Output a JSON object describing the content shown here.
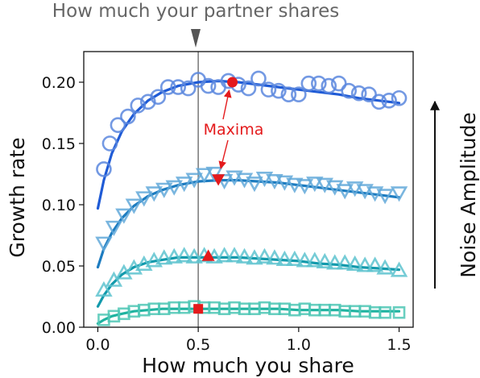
{
  "chart_data": {
    "type": "scatter",
    "title": "",
    "xlabel": "How much you share",
    "ylabel": "Growth rate",
    "xlim": [
      -0.07,
      1.57
    ],
    "ylim": [
      0.0,
      0.225
    ],
    "xticks": [
      0.0,
      0.5,
      1.0,
      1.5
    ],
    "xtick_labels": [
      "0.0",
      "0.5",
      "1.0",
      "1.5"
    ],
    "yticks": [
      0.0,
      0.05,
      0.1,
      0.15,
      0.2
    ],
    "ytick_labels": [
      "0.00",
      "0.05",
      "0.10",
      "0.15",
      "0.20"
    ],
    "grid": false,
    "legend": "none",
    "reference_line": {
      "x": 0.5,
      "label": "How much your partner shares"
    },
    "side_arrow_label": "Noise Amplitude",
    "annotation": {
      "text": "Maxima",
      "color": "#e41a1c"
    },
    "series": [
      {
        "marker": "circle",
        "color": "#1f5bd6",
        "point_color": "#5b87de",
        "x": [
          0.03,
          0.06,
          0.1,
          0.15,
          0.2,
          0.25,
          0.3,
          0.35,
          0.4,
          0.45,
          0.5,
          0.55,
          0.6,
          0.65,
          0.7,
          0.75,
          0.8,
          0.85,
          0.9,
          0.95,
          1.0,
          1.05,
          1.1,
          1.15,
          1.2,
          1.25,
          1.3,
          1.35,
          1.4,
          1.45,
          1.5
        ],
        "y": [
          0.129,
          0.15,
          0.165,
          0.172,
          0.181,
          0.184,
          0.188,
          0.196,
          0.196,
          0.195,
          0.202,
          0.197,
          0.196,
          0.201,
          0.198,
          0.195,
          0.203,
          0.194,
          0.193,
          0.19,
          0.19,
          0.199,
          0.199,
          0.197,
          0.199,
          0.193,
          0.191,
          0.19,
          0.184,
          0.185,
          0.187
        ],
        "fit": {
          "x": [
            0.0,
            0.03,
            0.07,
            0.12,
            0.18,
            0.25,
            0.32,
            0.4,
            0.5,
            0.6,
            0.7,
            0.8,
            0.9,
            1.0,
            1.1,
            1.2,
            1.3,
            1.4,
            1.5
          ],
          "y": [
            0.097,
            0.12,
            0.142,
            0.16,
            0.174,
            0.185,
            0.192,
            0.197,
            0.2,
            0.201,
            0.2,
            0.198,
            0.196,
            0.194,
            0.192,
            0.19,
            0.187,
            0.185,
            0.183
          ]
        },
        "maximum": {
          "marker": "circle",
          "x": 0.67,
          "y": 0.2
        }
      },
      {
        "marker": "triangle-down",
        "color": "#1d7cc0",
        "point_color": "#63a9d9",
        "x": [
          0.03,
          0.08,
          0.13,
          0.18,
          0.23,
          0.28,
          0.33,
          0.38,
          0.43,
          0.48,
          0.53,
          0.58,
          0.63,
          0.68,
          0.73,
          0.78,
          0.83,
          0.88,
          0.93,
          0.98,
          1.03,
          1.08,
          1.13,
          1.18,
          1.23,
          1.28,
          1.33,
          1.38,
          1.43,
          1.5
        ],
        "y": [
          0.069,
          0.082,
          0.092,
          0.1,
          0.106,
          0.11,
          0.113,
          0.115,
          0.118,
          0.121,
          0.125,
          0.126,
          0.12,
          0.123,
          0.121,
          0.118,
          0.122,
          0.12,
          0.119,
          0.117,
          0.116,
          0.118,
          0.117,
          0.115,
          0.112,
          0.114,
          0.112,
          0.11,
          0.108,
          0.11
        ],
        "fit": {
          "x": [
            0.0,
            0.03,
            0.07,
            0.12,
            0.18,
            0.25,
            0.32,
            0.4,
            0.5,
            0.6,
            0.7,
            0.8,
            0.9,
            1.0,
            1.1,
            1.2,
            1.3,
            1.4,
            1.5
          ],
          "y": [
            0.049,
            0.064,
            0.077,
            0.089,
            0.099,
            0.107,
            0.112,
            0.116,
            0.119,
            0.12,
            0.12,
            0.119,
            0.118,
            0.116,
            0.114,
            0.112,
            0.11,
            0.108,
            0.106
          ]
        },
        "maximum": {
          "marker": "triangle-down",
          "x": 0.6,
          "y": 0.121
        }
      },
      {
        "marker": "triangle-up",
        "color": "#139aac",
        "point_color": "#5ec3cf",
        "x": [
          0.03,
          0.08,
          0.13,
          0.18,
          0.23,
          0.28,
          0.33,
          0.38,
          0.43,
          0.48,
          0.53,
          0.58,
          0.63,
          0.68,
          0.73,
          0.78,
          0.83,
          0.88,
          0.93,
          0.98,
          1.03,
          1.08,
          1.13,
          1.18,
          1.23,
          1.28,
          1.33,
          1.38,
          1.43,
          1.5
        ],
        "y": [
          0.03,
          0.038,
          0.044,
          0.048,
          0.051,
          0.054,
          0.056,
          0.057,
          0.058,
          0.057,
          0.058,
          0.057,
          0.058,
          0.058,
          0.057,
          0.056,
          0.057,
          0.056,
          0.055,
          0.055,
          0.054,
          0.054,
          0.053,
          0.052,
          0.052,
          0.051,
          0.05,
          0.05,
          0.048,
          0.046
        ],
        "fit": {
          "x": [
            0.0,
            0.03,
            0.07,
            0.12,
            0.18,
            0.25,
            0.32,
            0.4,
            0.5,
            0.6,
            0.7,
            0.8,
            0.9,
            1.0,
            1.1,
            1.2,
            1.3,
            1.4,
            1.5
          ],
          "y": [
            0.017,
            0.026,
            0.035,
            0.043,
            0.049,
            0.053,
            0.055,
            0.057,
            0.057,
            0.057,
            0.057,
            0.056,
            0.055,
            0.054,
            0.052,
            0.051,
            0.049,
            0.048,
            0.047
          ]
        },
        "maximum": {
          "marker": "triangle-up",
          "x": 0.55,
          "y": 0.058
        }
      },
      {
        "marker": "square",
        "color": "#1fb3a0",
        "point_color": "#4fc7b5",
        "x": [
          0.03,
          0.08,
          0.13,
          0.18,
          0.23,
          0.28,
          0.33,
          0.38,
          0.43,
          0.48,
          0.53,
          0.58,
          0.63,
          0.68,
          0.73,
          0.78,
          0.83,
          0.88,
          0.93,
          0.98,
          1.03,
          1.08,
          1.13,
          1.18,
          1.23,
          1.28,
          1.33,
          1.38,
          1.43,
          1.5
        ],
        "y": [
          0.006,
          0.009,
          0.011,
          0.013,
          0.014,
          0.015,
          0.015,
          0.016,
          0.016,
          0.017,
          0.016,
          0.016,
          0.015,
          0.016,
          0.015,
          0.015,
          0.016,
          0.015,
          0.015,
          0.014,
          0.015,
          0.014,
          0.014,
          0.014,
          0.013,
          0.013,
          0.013,
          0.012,
          0.012,
          0.012
        ],
        "fit": {
          "x": [
            0.0,
            0.03,
            0.07,
            0.12,
            0.18,
            0.25,
            0.32,
            0.4,
            0.5,
            0.6,
            0.7,
            0.8,
            0.9,
            1.0,
            1.1,
            1.2,
            1.3,
            1.4,
            1.5
          ],
          "y": [
            0.003,
            0.006,
            0.009,
            0.011,
            0.013,
            0.014,
            0.015,
            0.015,
            0.015,
            0.015,
            0.015,
            0.015,
            0.015,
            0.014,
            0.014,
            0.014,
            0.013,
            0.013,
            0.013
          ]
        },
        "maximum": {
          "marker": "square",
          "x": 0.5,
          "y": 0.015
        }
      }
    ]
  }
}
